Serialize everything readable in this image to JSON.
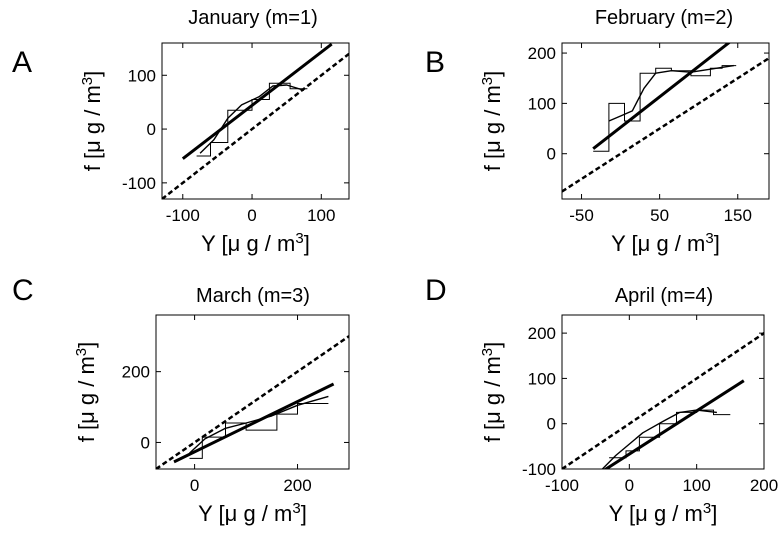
{
  "chart_data": [
    {
      "panel_letter": "A",
      "title": "January (m=1)",
      "type": "line",
      "xlabel": "Y   [μ g / m3]",
      "ylabel": "f   [μ g / m3]",
      "xlim": [
        -130,
        140
      ],
      "ylim": [
        -130,
        160
      ],
      "xticks": [
        -100,
        0,
        100
      ],
      "yticks": [
        -100,
        0,
        100
      ],
      "series": [
        {
          "style": "dashed",
          "x": [
            -130,
            140
          ],
          "y": [
            -130,
            140
          ]
        },
        {
          "style": "thick-solid",
          "x": [
            -100,
            115
          ],
          "y": [
            -55,
            158
          ]
        },
        {
          "style": "step",
          "x": [
            -80,
            -60,
            -60,
            -35,
            -35,
            0,
            0,
            25,
            25,
            55,
            55,
            80
          ],
          "y": [
            -50,
            -50,
            -25,
            -25,
            35,
            35,
            55,
            55,
            85,
            85,
            75,
            75
          ]
        },
        {
          "style": "smooth",
          "x": [
            -75,
            -55,
            -35,
            -15,
            10,
            30,
            50,
            75
          ],
          "y": [
            -45,
            -20,
            20,
            45,
            60,
            80,
            82,
            72
          ]
        }
      ]
    },
    {
      "panel_letter": "B",
      "title": "February (m=2)",
      "type": "line",
      "xlabel": "Y   [μ g / m3]",
      "ylabel": "f   [μ g / m3]",
      "xlim": [
        -75,
        190
      ],
      "ylim": [
        -90,
        220
      ],
      "xticks": [
        -50,
        50,
        150
      ],
      "yticks": [
        0,
        100,
        200
      ],
      "series": [
        {
          "style": "dashed",
          "x": [
            -75,
            190
          ],
          "y": [
            -75,
            190
          ]
        },
        {
          "style": "thick-solid",
          "x": [
            -35,
            140
          ],
          "y": [
            10,
            222
          ]
        },
        {
          "style": "step",
          "x": [
            -35,
            -15,
            -15,
            5,
            5,
            25,
            25,
            45,
            45,
            65,
            65,
            90,
            90,
            115,
            115,
            130,
            130,
            148
          ],
          "y": [
            5,
            5,
            100,
            100,
            65,
            65,
            160,
            160,
            170,
            170,
            165,
            165,
            155,
            155,
            170,
            170,
            175,
            175
          ]
        },
        {
          "style": "smooth",
          "x": [
            -15,
            0,
            15,
            30,
            45,
            65,
            90,
            115,
            145
          ],
          "y": [
            65,
            75,
            85,
            130,
            160,
            165,
            162,
            168,
            175
          ]
        }
      ]
    },
    {
      "panel_letter": "C",
      "title": "March (m=3)",
      "type": "line",
      "xlabel": "Y   [μ g / m3]",
      "ylabel": "f   [μ g / m3]",
      "xlim": [
        -75,
        300
      ],
      "ylim": [
        -75,
        360
      ],
      "xticks": [
        0,
        200
      ],
      "yticks": [
        0,
        200
      ],
      "series": [
        {
          "style": "dashed",
          "x": [
            -75,
            300
          ],
          "y": [
            -75,
            300
          ]
        },
        {
          "style": "thick-solid",
          "x": [
            -40,
            270
          ],
          "y": [
            -55,
            165
          ]
        },
        {
          "style": "step",
          "x": [
            -10,
            15,
            15,
            60,
            60,
            100,
            100,
            160,
            160,
            200,
            200,
            260
          ],
          "y": [
            -45,
            -45,
            15,
            15,
            55,
            55,
            35,
            35,
            80,
            80,
            110,
            110
          ]
        },
        {
          "style": "smooth",
          "x": [
            -10,
            20,
            60,
            100,
            150,
            200,
            260
          ],
          "y": [
            -30,
            10,
            40,
            55,
            75,
            105,
            130
          ]
        }
      ]
    },
    {
      "panel_letter": "D",
      "title": "April (m=4)",
      "type": "line",
      "xlabel": "Y   [μ g / m3]",
      "ylabel": "f   [μ g / m3]",
      "xlim": [
        -100,
        200
      ],
      "ylim": [
        -100,
        240
      ],
      "xticks": [
        -100,
        0,
        100,
        200
      ],
      "yticks": [
        -100,
        0,
        100,
        200
      ],
      "series": [
        {
          "style": "dashed",
          "x": [
            -100,
            205
          ],
          "y": [
            -100,
            205
          ]
        },
        {
          "style": "thick-solid",
          "x": [
            -45,
            170
          ],
          "y": [
            -110,
            95
          ]
        },
        {
          "style": "step",
          "x": [
            -30,
            -5,
            -5,
            15,
            15,
            45,
            45,
            70,
            70,
            100,
            100,
            125,
            125,
            150
          ],
          "y": [
            -75,
            -75,
            -60,
            -60,
            -30,
            -30,
            0,
            0,
            25,
            25,
            30,
            30,
            20,
            20
          ]
        },
        {
          "style": "smooth",
          "x": [
            -40,
            -20,
            0,
            20,
            50,
            75,
            100,
            130
          ],
          "y": [
            -100,
            -70,
            -45,
            -20,
            5,
            25,
            30,
            25
          ]
        }
      ]
    }
  ]
}
